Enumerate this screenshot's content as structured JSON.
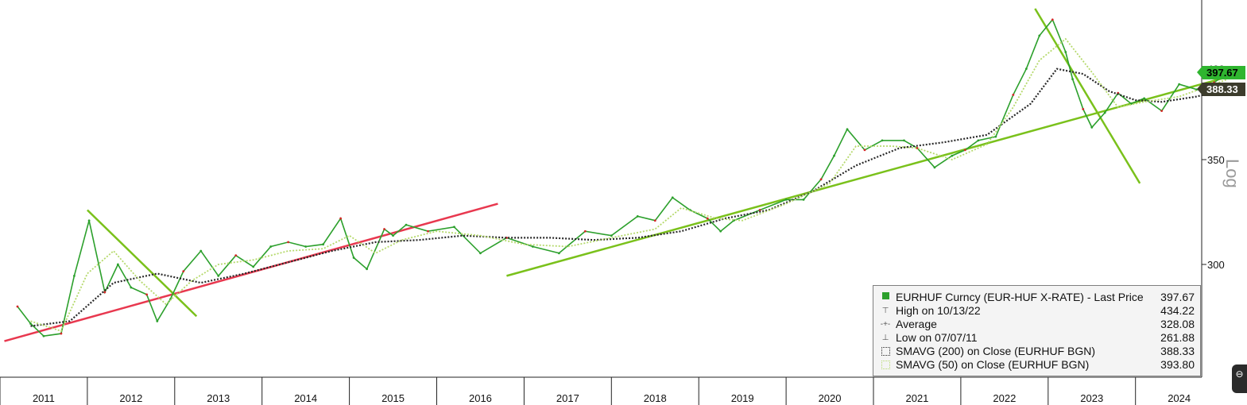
{
  "chart_data": {
    "type": "line",
    "title": "",
    "scale": "log",
    "scale_label": "Log",
    "x_ticks": [
      "2011",
      "2012",
      "2013",
      "2014",
      "2015",
      "2016",
      "2017",
      "2018",
      "2019",
      "2020",
      "2021",
      "2022",
      "2023",
      "2024"
    ],
    "y_ticks": [
      "300",
      "350",
      "400"
    ],
    "ylim": [
      260,
      440
    ],
    "grid": false,
    "legend_position": "bottom-right",
    "series": [
      {
        "name": "EURHUF Curncy (EUR-HUF X-RATE) - Last Price",
        "color": "#2ca02c",
        "x": [
          2010.7,
          2010.85,
          2011.0,
          2011.2,
          2011.35,
          2011.52,
          2011.7,
          2011.85,
          2012.0,
          2012.18,
          2012.3,
          2012.45,
          2012.6,
          2012.8,
          2013.0,
          2013.2,
          2013.4,
          2013.6,
          2013.8,
          2014.0,
          2014.2,
          2014.4,
          2014.55,
          2014.7,
          2014.9,
          2015.0,
          2015.15,
          2015.4,
          2015.7,
          2016.0,
          2016.3,
          2016.6,
          2016.9,
          2017.2,
          2017.5,
          2017.8,
          2018.0,
          2018.2,
          2018.4,
          2018.6,
          2018.75,
          2018.9,
          2019.2,
          2019.5,
          2019.7,
          2019.9,
          2020.05,
          2020.2,
          2020.4,
          2020.6,
          2020.85,
          2021.0,
          2021.2,
          2021.4,
          2021.55,
          2021.7,
          2021.9,
          2022.1,
          2022.25,
          2022.4,
          2022.55,
          2022.7,
          2022.78,
          2022.9,
          2023.0,
          2023.15,
          2023.3,
          2023.45,
          2023.6,
          2023.8,
          2024.0,
          2024.2,
          2024.4,
          2024.55
        ],
        "y": [
          282,
          275,
          270,
          271,
          295,
          320,
          288,
          300,
          290,
          287,
          276,
          285,
          297,
          306,
          295,
          304,
          299,
          308,
          310,
          308,
          309,
          321,
          303,
          298,
          316,
          313,
          318,
          315,
          317,
          305,
          312,
          308,
          305,
          315,
          313,
          322,
          320,
          331,
          325,
          321,
          315,
          320,
          325,
          330,
          330,
          340,
          352,
          366,
          355,
          360,
          360,
          356,
          346,
          352,
          355,
          360,
          362,
          385,
          400,
          420,
          430,
          410,
          394,
          377,
          367,
          375,
          386,
          380,
          383,
          376,
          391,
          388,
          392,
          397.67
        ]
      },
      {
        "name": "SMAVG (200) on Close (EURHUF BGN)",
        "color": "#2a2a2a",
        "x": [
          2010.85,
          2011.3,
          2011.8,
          2012.3,
          2012.8,
          2013.3,
          2013.8,
          2014.3,
          2014.8,
          2015.3,
          2015.8,
          2016.3,
          2016.8,
          2017.3,
          2017.8,
          2018.3,
          2018.8,
          2019.3,
          2019.8,
          2020.3,
          2020.8,
          2021.3,
          2021.8,
          2022.3,
          2022.6,
          2022.9,
          2023.2,
          2023.5,
          2023.8,
          2024.2,
          2024.55
        ],
        "y": [
          274,
          276,
          292,
          296,
          292,
          296,
          301,
          306,
          310,
          311,
          313,
          312,
          312,
          311,
          312,
          315,
          321,
          325,
          334,
          347,
          356,
          359,
          363,
          380,
          400,
          397,
          387,
          382,
          381,
          384,
          388.33
        ]
      },
      {
        "name": "SMAVG (50)  on Close (EURHUF BGN)",
        "color": "#b5d96b",
        "x": [
          2010.85,
          2011.2,
          2011.5,
          2011.8,
          2012.1,
          2012.4,
          2012.7,
          2013.0,
          2013.4,
          2013.8,
          2014.2,
          2014.5,
          2014.8,
          2015.1,
          2015.5,
          2016.0,
          2016.5,
          2017.0,
          2017.5,
          2018.0,
          2018.3,
          2018.7,
          2019.0,
          2019.5,
          2020.0,
          2020.3,
          2020.7,
          2021.0,
          2021.4,
          2021.8,
          2022.1,
          2022.4,
          2022.7,
          2023.0,
          2023.3,
          2023.6,
          2024.0,
          2024.55
        ],
        "y": [
          276,
          272,
          296,
          306,
          293,
          283,
          293,
          300,
          302,
          306,
          307,
          313,
          305,
          311,
          315,
          313,
          309,
          308,
          312,
          316,
          326,
          321,
          320,
          328,
          338,
          357,
          357,
          356,
          350,
          358,
          378,
          405,
          418,
          398,
          378,
          381,
          384,
          393.8
        ]
      }
    ],
    "trendlines": [
      {
        "name": "red-support",
        "color": "#e8384f",
        "from": [
          2010.55,
          268
        ],
        "to": [
          2016.2,
          328
        ]
      },
      {
        "name": "green-resistance-2012",
        "color": "#7ac11b",
        "from": [
          2011.5,
          325
        ],
        "to": [
          2012.75,
          278
        ]
      },
      {
        "name": "green-support-2017",
        "color": "#7ac11b",
        "from": [
          2016.3,
          295
        ],
        "to": [
          2024.75,
          398
        ]
      },
      {
        "name": "green-resistance-2022",
        "color": "#7ac11b",
        "from": [
          2022.35,
          437
        ],
        "to": [
          2023.55,
          338
        ]
      }
    ],
    "legend": {
      "entries": [
        {
          "label": "EURHUF Curncy (EUR-HUF X-RATE) - Last Price",
          "value": "397.67",
          "marker": "■",
          "color": "#2ca02c"
        },
        {
          "label": "High on 10/13/22",
          "value": "434.22",
          "marker": "⊤",
          "color": "#555555"
        },
        {
          "label": "Average",
          "value": "328.08",
          "marker": "+",
          "color": "#555555"
        },
        {
          "label": "Low on 07/07/11",
          "value": "261.88",
          "marker": "⊥",
          "color": "#555555"
        },
        {
          "label": "SMAVG (200)  on Close (EURHUF BGN)",
          "value": "388.33",
          "marker": "sq",
          "color": "#2a2a2a"
        },
        {
          "label": "SMAVG (50)  on Close (EURHUF BGN)",
          "value": "393.80",
          "marker": "sq",
          "color": "#b5d96b"
        }
      ]
    },
    "last_price_labels": [
      {
        "value": "397.67",
        "y": 397.67,
        "bg": "#2fb52f"
      },
      {
        "value": "388.33",
        "y": 388.33,
        "bg": "#3c3c2c"
      }
    ]
  }
}
